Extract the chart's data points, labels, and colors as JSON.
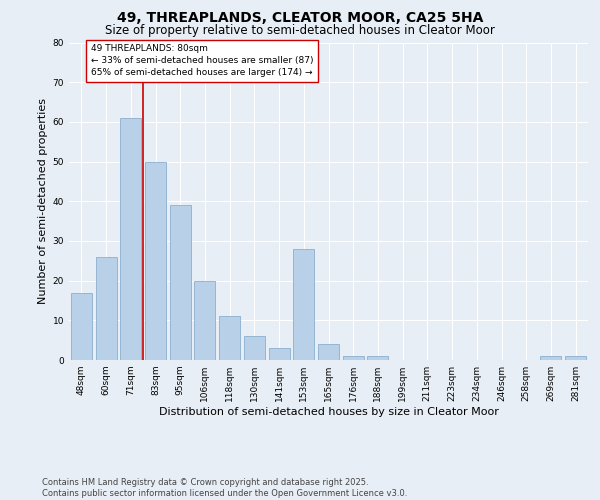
{
  "title": "49, THREAPLANDS, CLEATOR MOOR, CA25 5HA",
  "subtitle": "Size of property relative to semi-detached houses in Cleator Moor",
  "xlabel": "Distribution of semi-detached houses by size in Cleator Moor",
  "ylabel": "Number of semi-detached properties",
  "footnote": "Contains HM Land Registry data © Crown copyright and database right 2025.\nContains public sector information licensed under the Open Government Licence v3.0.",
  "bar_labels": [
    "48sqm",
    "60sqm",
    "71sqm",
    "83sqm",
    "95sqm",
    "106sqm",
    "118sqm",
    "130sqm",
    "141sqm",
    "153sqm",
    "165sqm",
    "176sqm",
    "188sqm",
    "199sqm",
    "211sqm",
    "223sqm",
    "234sqm",
    "246sqm",
    "258sqm",
    "269sqm",
    "281sqm"
  ],
  "bar_values": [
    17,
    26,
    61,
    50,
    39,
    20,
    11,
    6,
    3,
    28,
    4,
    1,
    1,
    0,
    0,
    0,
    0,
    0,
    0,
    1,
    1
  ],
  "bar_color": "#b8d0e8",
  "bar_edge_color": "#8ab0d0",
  "highlight_line_color": "#cc0000",
  "annotation_title": "49 THREAPLANDS: 80sqm",
  "annotation_line1": "← 33% of semi-detached houses are smaller (87)",
  "annotation_line2": "65% of semi-detached houses are larger (174) →",
  "annotation_box_color": "#ffffff",
  "annotation_box_edge": "#cc0000",
  "ylim": [
    0,
    80
  ],
  "yticks": [
    0,
    10,
    20,
    30,
    40,
    50,
    60,
    70,
    80
  ],
  "bg_color": "#e8eef5",
  "plot_bg_color": "#e8eef5",
  "grid_color": "#ffffff",
  "title_fontsize": 10,
  "subtitle_fontsize": 8.5,
  "axis_label_fontsize": 8,
  "tick_fontsize": 6.5,
  "annotation_fontsize": 6.5,
  "footnote_fontsize": 6
}
